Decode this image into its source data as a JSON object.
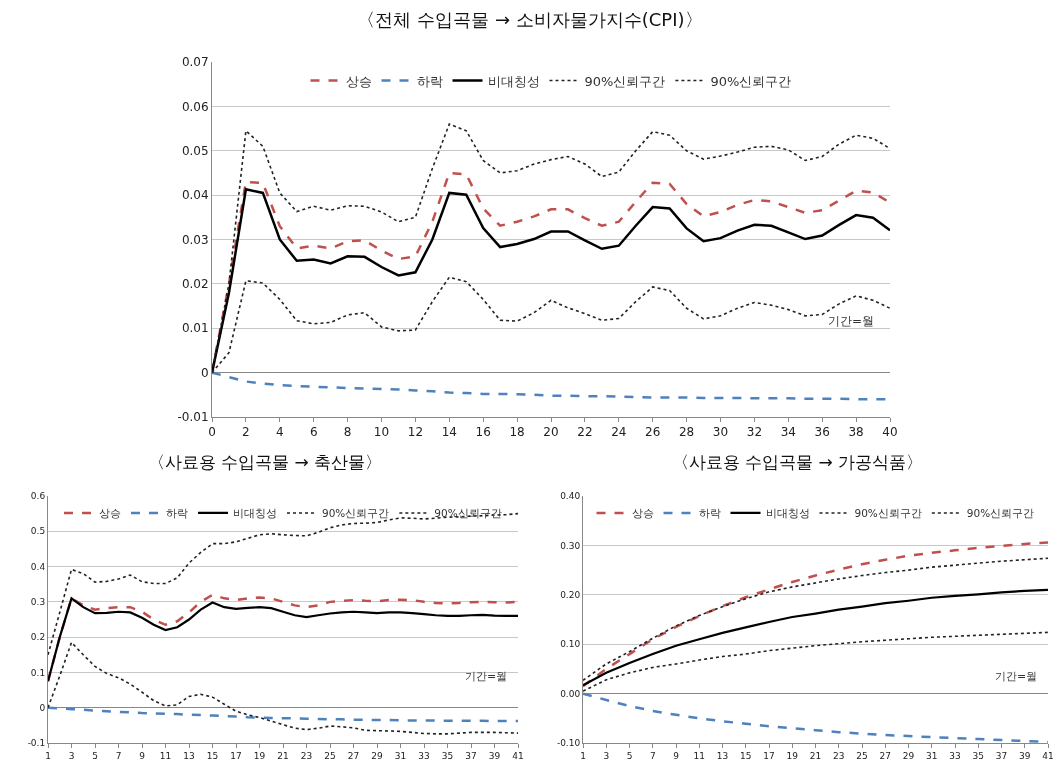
{
  "chart_data": [
    {
      "type": "line",
      "title": "〈전체 수입곡물 → 소비자물가지수(CPI)〉",
      "x": [
        0,
        1,
        2,
        3,
        4,
        5,
        6,
        7,
        8,
        9,
        10,
        11,
        12,
        13,
        14,
        15,
        16,
        17,
        18,
        19,
        20,
        21,
        22,
        23,
        24,
        25,
        26,
        27,
        28,
        29,
        30,
        31,
        32,
        33,
        34,
        35,
        36,
        37,
        38,
        39,
        40
      ],
      "xlim": [
        0,
        40
      ],
      "xticks": [
        0,
        2,
        4,
        6,
        8,
        10,
        12,
        14,
        16,
        18,
        20,
        22,
        24,
        26,
        28,
        30,
        32,
        34,
        36,
        38,
        40
      ],
      "ylim": [
        -0.01,
        0.07
      ],
      "yticks": [
        -0.01,
        0,
        0.01,
        0.02,
        0.03,
        0.04,
        0.05,
        0.06,
        0.07
      ],
      "grid": "y",
      "legend": "top",
      "annotations": [
        "기간=월"
      ],
      "series": [
        {
          "name": "상승",
          "color": "#c0504d",
          "line_style": "dashed",
          "values": [
            0,
            0.02,
            0.043,
            0.0427,
            0.033,
            0.028,
            0.0286,
            0.028,
            0.0296,
            0.0298,
            0.0275,
            0.0256,
            0.0262,
            0.034,
            0.045,
            0.0447,
            0.037,
            0.0331,
            0.034,
            0.0352,
            0.0368,
            0.0368,
            0.0348,
            0.0331,
            0.034,
            0.0385,
            0.0428,
            0.0425,
            0.038,
            0.0352,
            0.0362,
            0.0378,
            0.0389,
            0.0386,
            0.0373,
            0.036,
            0.0366,
            0.0388,
            0.041,
            0.0406,
            0.0383
          ]
        },
        {
          "name": "하락",
          "color": "#4f81bd",
          "line_style": "dashed",
          "values": [
            0,
            -0.001,
            -0.002,
            -0.0025,
            -0.0028,
            -0.003,
            -0.0032,
            -0.0033,
            -0.0035,
            -0.0036,
            -0.0037,
            -0.0038,
            -0.004,
            -0.0042,
            -0.0045,
            -0.0046,
            -0.0048,
            -0.0048,
            -0.0049,
            -0.005,
            -0.0052,
            -0.0052,
            -0.0053,
            -0.0053,
            -0.0054,
            -0.0055,
            -0.0056,
            -0.0056,
            -0.0056,
            -0.0057,
            -0.0057,
            -0.0057,
            -0.0058,
            -0.0058,
            -0.0058,
            -0.0059,
            -0.0059,
            -0.0059,
            -0.006,
            -0.006,
            -0.006
          ]
        },
        {
          "name": "비대칭성",
          "color": "#000000",
          "line_style": "solid",
          "values": [
            0,
            0.018,
            0.0413,
            0.0405,
            0.03,
            0.0252,
            0.0255,
            0.0246,
            0.0262,
            0.0261,
            0.0238,
            0.0219,
            0.0226,
            0.03,
            0.0405,
            0.0401,
            0.0326,
            0.0283,
            0.029,
            0.0301,
            0.0318,
            0.0318,
            0.0298,
            0.0279,
            0.0286,
            0.0331,
            0.0373,
            0.037,
            0.0325,
            0.0296,
            0.0303,
            0.032,
            0.0333,
            0.0331,
            0.0316,
            0.0301,
            0.0309,
            0.0333,
            0.0355,
            0.0349,
            0.0321
          ]
        },
        {
          "name": "90%신뢰구간",
          "color": "#222222",
          "line_style": "dotted",
          "values": [
            0,
            0.02,
            0.0545,
            0.051,
            0.0405,
            0.0363,
            0.0375,
            0.0366,
            0.0376,
            0.0375,
            0.0362,
            0.034,
            0.035,
            0.046,
            0.056,
            0.0545,
            0.0478,
            0.045,
            0.0455,
            0.047,
            0.048,
            0.0487,
            0.047,
            0.0442,
            0.0452,
            0.05,
            0.0543,
            0.0535,
            0.05,
            0.0481,
            0.0488,
            0.0497,
            0.0508,
            0.051,
            0.0502,
            0.0478,
            0.0487,
            0.0515,
            0.0535,
            0.0528,
            0.0505
          ]
        },
        {
          "name": "90%신뢰구간",
          "color": "#222222",
          "line_style": "dotted",
          "values": [
            0,
            0.0045,
            0.0207,
            0.0202,
            0.0165,
            0.0117,
            0.011,
            0.0113,
            0.013,
            0.0135,
            0.0103,
            0.0094,
            0.0096,
            0.016,
            0.0215,
            0.0205,
            0.0165,
            0.0118,
            0.0116,
            0.0135,
            0.0163,
            0.0146,
            0.0133,
            0.0118,
            0.0122,
            0.016,
            0.0193,
            0.0185,
            0.0145,
            0.0121,
            0.0128,
            0.0145,
            0.0158,
            0.0152,
            0.0142,
            0.0128,
            0.0131,
            0.0155,
            0.0173,
            0.0163,
            0.0145
          ]
        }
      ]
    },
    {
      "type": "line",
      "title": "〈사료용 수입곡물 → 축산물〉",
      "x": [
        1,
        2,
        3,
        4,
        5,
        6,
        7,
        8,
        9,
        10,
        11,
        12,
        13,
        14,
        15,
        16,
        17,
        18,
        19,
        20,
        21,
        22,
        23,
        24,
        25,
        26,
        27,
        28,
        29,
        30,
        31,
        32,
        33,
        34,
        35,
        36,
        37,
        38,
        39,
        40,
        41
      ],
      "xlim": [
        1,
        41
      ],
      "xticks": [
        1,
        3,
        5,
        7,
        9,
        11,
        13,
        15,
        17,
        19,
        21,
        23,
        25,
        27,
        29,
        31,
        33,
        35,
        37,
        39,
        41
      ],
      "ylim": [
        -0.1,
        0.6
      ],
      "yticks": [
        -0.1,
        0,
        0.1,
        0.2,
        0.3,
        0.4,
        0.5,
        0.6
      ],
      "grid": "y",
      "legend": "top",
      "annotations": [
        "기간=월"
      ],
      "series": [
        {
          "name": "상승",
          "color": "#c0504d",
          "line_style": "dashed",
          "values": [
            0.075,
            0.2,
            0.31,
            0.29,
            0.278,
            0.282,
            0.285,
            0.285,
            0.272,
            0.25,
            0.235,
            0.245,
            0.27,
            0.3,
            0.32,
            0.31,
            0.305,
            0.31,
            0.312,
            0.31,
            0.3,
            0.29,
            0.285,
            0.29,
            0.3,
            0.303,
            0.305,
            0.303,
            0.302,
            0.305,
            0.306,
            0.305,
            0.3,
            0.297,
            0.296,
            0.297,
            0.299,
            0.3,
            0.299,
            0.298,
            0.3
          ]
        },
        {
          "name": "하락",
          "color": "#4f81bd",
          "line_style": "dashed",
          "values": [
            0,
            -0.002,
            -0.004,
            -0.006,
            -0.008,
            -0.01,
            -0.012,
            -0.013,
            -0.015,
            -0.016,
            -0.017,
            -0.018,
            -0.02,
            -0.021,
            -0.022,
            -0.024,
            -0.025,
            -0.027,
            -0.028,
            -0.029,
            -0.03,
            -0.03,
            -0.031,
            -0.032,
            -0.033,
            -0.033,
            -0.034,
            -0.034,
            -0.035,
            -0.035,
            -0.036,
            -0.036,
            -0.036,
            -0.036,
            -0.037,
            -0.037,
            -0.037,
            -0.037,
            -0.038,
            -0.038,
            -0.038
          ]
        },
        {
          "name": "비대칭성",
          "color": "#000000",
          "line_style": "solid",
          "values": [
            0.075,
            0.2,
            0.31,
            0.285,
            0.268,
            0.269,
            0.272,
            0.27,
            0.255,
            0.235,
            0.22,
            0.228,
            0.25,
            0.278,
            0.298,
            0.285,
            0.28,
            0.283,
            0.285,
            0.282,
            0.272,
            0.262,
            0.257,
            0.262,
            0.267,
            0.27,
            0.272,
            0.27,
            0.268,
            0.27,
            0.27,
            0.268,
            0.265,
            0.262,
            0.26,
            0.26,
            0.262,
            0.263,
            0.261,
            0.26,
            0.26
          ]
        },
        {
          "name": "90%신뢰구간",
          "color": "#222222",
          "line_style": "dotted",
          "values": [
            0.15,
            0.27,
            0.392,
            0.38,
            0.356,
            0.358,
            0.365,
            0.376,
            0.357,
            0.352,
            0.352,
            0.368,
            0.41,
            0.44,
            0.465,
            0.465,
            0.47,
            0.48,
            0.49,
            0.493,
            0.49,
            0.488,
            0.487,
            0.497,
            0.51,
            0.518,
            0.522,
            0.523,
            0.525,
            0.532,
            0.538,
            0.537,
            0.535,
            0.537,
            0.54,
            0.541,
            0.543,
            0.544,
            0.546,
            0.547,
            0.55
          ]
        },
        {
          "name": "90%신뢰구간",
          "color": "#222222",
          "line_style": "dotted",
          "values": [
            0,
            0.09,
            0.185,
            0.15,
            0.117,
            0.097,
            0.085,
            0.067,
            0.044,
            0.02,
            0.005,
            0.008,
            0.032,
            0.038,
            0.03,
            0.01,
            -0.01,
            -0.02,
            -0.028,
            -0.038,
            -0.048,
            -0.058,
            -0.062,
            -0.058,
            -0.052,
            -0.054,
            -0.057,
            -0.064,
            -0.065,
            -0.066,
            -0.067,
            -0.07,
            -0.073,
            -0.074,
            -0.074,
            -0.072,
            -0.07,
            -0.07,
            -0.07,
            -0.071,
            -0.072
          ]
        }
      ]
    },
    {
      "type": "line",
      "title": "〈사료용 수입곡물 → 가공식품〉",
      "x": [
        1,
        3,
        5,
        7,
        9,
        11,
        13,
        15,
        17,
        19,
        21,
        23,
        25,
        27,
        29,
        31,
        33,
        35,
        37,
        39,
        41
      ],
      "xlim": [
        1,
        41
      ],
      "xticks": [
        1,
        3,
        5,
        7,
        9,
        11,
        13,
        15,
        17,
        19,
        21,
        23,
        25,
        27,
        29,
        31,
        33,
        35,
        37,
        39,
        41
      ],
      "ylim": [
        -0.1,
        0.4
      ],
      "yticks": [
        {
          "value": -0.1,
          "label": "-0.10"
        },
        {
          "value": 0,
          "label": "0.00"
        },
        {
          "value": 0.1,
          "label": "0.10"
        },
        {
          "value": 0.2,
          "label": "0.20"
        },
        {
          "value": 0.3,
          "label": "0.30"
        },
        {
          "value": 0.4,
          "label": "0.40"
        }
      ],
      "grid": "y",
      "legend": "top",
      "annotations": [
        "기간=월"
      ],
      "series": [
        {
          "name": "상승",
          "color": "#c0504d",
          "line_style": "dashed",
          "values": [
            0.015,
            0.05,
            0.08,
            0.11,
            0.135,
            0.157,
            0.177,
            0.195,
            0.211,
            0.226,
            0.239,
            0.251,
            0.262,
            0.271,
            0.279,
            0.285,
            0.29,
            0.295,
            0.299,
            0.303,
            0.306
          ]
        },
        {
          "name": "하락",
          "color": "#4f81bd",
          "line_style": "dashed",
          "values": [
            0,
            -0.013,
            -0.025,
            -0.035,
            -0.043,
            -0.05,
            -0.056,
            -0.061,
            -0.066,
            -0.07,
            -0.074,
            -0.078,
            -0.081,
            -0.084,
            -0.086,
            -0.088,
            -0.09,
            -0.092,
            -0.094,
            -0.096,
            -0.098
          ]
        },
        {
          "name": "비대칭성",
          "color": "#000000",
          "line_style": "solid",
          "values": [
            0.017,
            0.042,
            0.062,
            0.08,
            0.097,
            0.11,
            0.123,
            0.134,
            0.145,
            0.155,
            0.162,
            0.17,
            0.176,
            0.183,
            0.188,
            0.194,
            0.198,
            0.201,
            0.205,
            0.208,
            0.21
          ]
        },
        {
          "name": "90%신뢰구간",
          "color": "#222222",
          "line_style": "dotted",
          "values": [
            0.027,
            0.06,
            0.085,
            0.112,
            0.137,
            0.158,
            0.176,
            0.192,
            0.206,
            0.216,
            0.224,
            0.232,
            0.239,
            0.245,
            0.25,
            0.256,
            0.26,
            0.264,
            0.268,
            0.271,
            0.274
          ]
        },
        {
          "name": "90%신뢰구간",
          "color": "#222222",
          "line_style": "dotted",
          "values": [
            0.005,
            0.028,
            0.042,
            0.053,
            0.06,
            0.068,
            0.075,
            0.08,
            0.087,
            0.092,
            0.097,
            0.101,
            0.105,
            0.108,
            0.111,
            0.114,
            0.116,
            0.118,
            0.12,
            0.122,
            0.124
          ]
        }
      ]
    }
  ]
}
